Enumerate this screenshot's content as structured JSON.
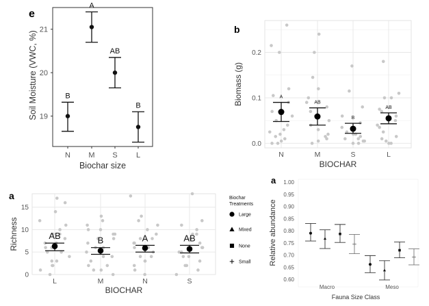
{
  "colors": {
    "point": "#c8c8c8",
    "mean": "#000000",
    "grid": "#e6e6e6",
    "errbar": "#333333",
    "gray_mean": "#8a8a8a"
  },
  "chart_data": [
    {
      "id": "e",
      "panel_label": "e",
      "type": "scatter",
      "xlabel": "Biochar size",
      "ylabel": "Soil Moisture (VWC, %)",
      "categories": [
        "N",
        "M",
        "S",
        "L"
      ],
      "ylim": [
        18.3,
        21.5
      ],
      "yticks": [
        19,
        20,
        21
      ],
      "means": [
        19.0,
        21.05,
        20.0,
        18.75
      ],
      "lower": [
        18.65,
        20.7,
        19.65,
        18.4
      ],
      "upper": [
        19.32,
        21.4,
        20.35,
        19.1
      ],
      "letters": [
        "B",
        "A",
        "AB",
        "B"
      ],
      "grid": false
    },
    {
      "id": "b",
      "panel_label": "b",
      "type": "scatter",
      "xlabel": "BIOCHAR",
      "ylabel": "Biomass (g)",
      "categories": [
        "N",
        "M",
        "S",
        "L"
      ],
      "ylim": [
        -0.01,
        0.27
      ],
      "yticks": [
        0.0,
        0.1,
        0.2
      ],
      "means": [
        0.069,
        0.059,
        0.032,
        0.055
      ],
      "lower": [
        0.048,
        0.04,
        0.022,
        0.043
      ],
      "upper": [
        0.09,
        0.078,
        0.044,
        0.067
      ],
      "letters": [
        "A",
        "AB",
        "B",
        "AB"
      ],
      "points": [
        [
          0.26,
          0.215,
          0.2,
          0.12,
          0.105,
          0.09,
          0.07,
          0.06,
          0.05,
          0.04,
          0.025,
          0.015,
          0.01,
          0.005,
          0.0,
          0.0,
          0.03,
          0.02
        ],
        [
          0.24,
          0.2,
          0.145,
          0.12,
          0.1,
          0.09,
          0.08,
          0.07,
          0.06,
          0.05,
          0.04,
          0.03,
          0.02,
          0.01,
          0.0,
          0.005,
          0.015
        ],
        [
          0.17,
          0.115,
          0.08,
          0.06,
          0.045,
          0.035,
          0.03,
          0.025,
          0.02,
          0.015,
          0.01,
          0.005,
          0.0,
          0.0,
          0.01,
          0.02,
          0.005
        ],
        [
          0.18,
          0.11,
          0.1,
          0.075,
          0.07,
          0.06,
          0.05,
          0.04,
          0.035,
          0.025,
          0.015,
          0.01,
          0.005,
          0.0,
          0.0,
          0.1
        ]
      ],
      "grid": true
    },
    {
      "id": "a_richness",
      "panel_label": "a",
      "type": "scatter",
      "xlabel": "BIOCHAR",
      "ylabel": "Richness",
      "categories": [
        "L",
        "M",
        "N",
        "S"
      ],
      "ylim": [
        0,
        18
      ],
      "yticks": [
        0,
        5,
        10,
        15
      ],
      "means": [
        6.3,
        5.3,
        5.9,
        5.7
      ],
      "lower": [
        5.3,
        4.5,
        5.0,
        4.8
      ],
      "upper": [
        7.0,
        6.0,
        6.5,
        6.5
      ],
      "letters": [
        "AB",
        "B",
        "A",
        "AB"
      ],
      "points": [
        [
          14,
          17,
          16,
          12,
          10,
          9,
          8,
          7,
          6,
          5,
          4,
          3,
          2,
          2,
          1,
          0,
          7,
          9,
          11,
          5,
          3,
          6
        ],
        [
          13,
          12,
          11,
          10,
          9,
          8,
          8,
          7,
          6,
          5,
          4,
          3,
          2,
          1,
          1,
          0,
          6,
          9,
          10,
          4,
          2
        ],
        [
          17.5,
          13,
          12,
          10,
          9,
          8,
          7,
          6,
          5,
          4,
          3,
          2,
          1,
          0,
          6,
          8,
          11,
          4,
          3,
          7
        ],
        [
          18,
          12,
          10,
          9,
          8,
          7,
          6,
          5,
          4,
          3,
          2,
          1,
          0,
          6,
          9,
          11,
          4,
          2,
          5
        ]
      ],
      "grid": true,
      "legend": {
        "title": "Biochar Treatments",
        "entries": [
          {
            "label": "Large",
            "shape": "circle"
          },
          {
            "label": "Mixed",
            "shape": "triangle"
          },
          {
            "label": "None",
            "shape": "square"
          },
          {
            "label": "Small",
            "shape": "plus"
          }
        ]
      }
    },
    {
      "id": "a_relabund",
      "panel_label": "a",
      "type": "scatter",
      "xlabel": "Fauna Size Class",
      "ylabel": "Relative abundance",
      "groups": [
        "Macro",
        "Meso"
      ],
      "ylim": [
        0.595,
        1.0
      ],
      "yticks": [
        0.6,
        0.65,
        0.7,
        0.75,
        0.8,
        0.85,
        0.9,
        0.95,
        1.0
      ],
      "tick_labels": [
        "0.60",
        "0.65",
        "0.70",
        "0.75",
        "0.80",
        "0.85",
        "0.90",
        "0.95",
        "1.00"
      ],
      "series": [
        {
          "name": "Large",
          "shape": "circle",
          "values": [
            0.79,
            0.662
          ],
          "lower": [
            0.758,
            0.628
          ],
          "upper": [
            0.83,
            0.698
          ]
        },
        {
          "name": "Mixed",
          "shape": "triangle",
          "values": [
            0.768,
            0.638
          ],
          "lower": [
            0.727,
            0.598
          ],
          "upper": [
            0.804,
            0.677
          ]
        },
        {
          "name": "None",
          "shape": "square",
          "values": [
            0.787,
            0.72
          ],
          "lower": [
            0.752,
            0.689
          ],
          "upper": [
            0.826,
            0.754
          ]
        },
        {
          "name": "Small",
          "shape": "plus",
          "values": [
            0.745,
            0.692
          ],
          "lower": [
            0.706,
            0.66
          ],
          "upper": [
            0.785,
            0.726
          ]
        }
      ],
      "grid": false
    }
  ]
}
